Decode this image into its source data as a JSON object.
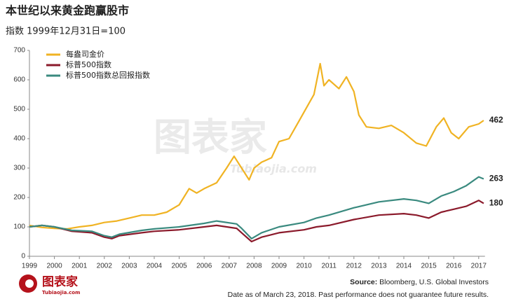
{
  "chart_data": {
    "type": "line",
    "title": "本世纪以来黄金跑赢股市",
    "subtitle": "指数 1999年12月31日=100",
    "source_label": "Source:",
    "source": "Bloomberg, U.S. Global Investors",
    "note": "Date as of March 23, 2018. Past performance does not guarantee future results.",
    "watermark": "图表家",
    "watermark_url": "Tubiaojia.com",
    "xlim": [
      1999,
      2017.25
    ],
    "xticks": [
      1999,
      2000,
      2001,
      2002,
      2003,
      2004,
      2005,
      2006,
      2007,
      2008,
      2009,
      2010,
      2011,
      2012,
      2013,
      2014,
      2015,
      2016,
      2017
    ],
    "ylim": [
      0,
      700
    ],
    "yticks": [
      0,
      100,
      200,
      300,
      400,
      500,
      600,
      700
    ],
    "legend": "upper left",
    "series": [
      {
        "name": "每盎司金价",
        "color": "#f0b323",
        "x": [
          1999.0,
          1999.5,
          2000.0,
          2000.5,
          2001.0,
          2001.5,
          2002.0,
          2002.5,
          2003.0,
          2003.5,
          2004.0,
          2004.5,
          2005.0,
          2005.4,
          2005.7,
          2006.0,
          2006.5,
          2006.9,
          2007.2,
          2007.5,
          2007.8,
          2008.0,
          2008.3,
          2008.7,
          2009.0,
          2009.4,
          2009.8,
          2010.2,
          2010.4,
          2010.65,
          2010.8,
          2011.0,
          2011.4,
          2011.7,
          2012.0,
          2012.2,
          2012.5,
          2013.0,
          2013.5,
          2014.0,
          2014.5,
          2014.9,
          2015.3,
          2015.6,
          2015.9,
          2016.2,
          2016.6,
          2017.0,
          2017.2
        ],
        "values": [
          105,
          98,
          95,
          93,
          100,
          105,
          115,
          120,
          130,
          140,
          140,
          150,
          175,
          230,
          215,
          230,
          250,
          300,
          340,
          300,
          260,
          300,
          320,
          335,
          390,
          400,
          460,
          520,
          550,
          655,
          580,
          600,
          570,
          610,
          560,
          480,
          440,
          435,
          445,
          420,
          385,
          375,
          440,
          470,
          420,
          400,
          440,
          450,
          462
        ]
      },
      {
        "name": "标普500指数",
        "color": "#8b1a2b",
        "x": [
          1999.0,
          1999.5,
          2000.0,
          2000.7,
          2001.5,
          2002.0,
          2002.3,
          2002.6,
          2003.5,
          2004.0,
          2005.0,
          2006.0,
          2006.5,
          2007.3,
          2007.5,
          2007.9,
          2008.3,
          2009.0,
          2010.0,
          2010.5,
          2011.0,
          2012.0,
          2013.0,
          2014.0,
          2014.5,
          2015.0,
          2015.5,
          2016.0,
          2016.5,
          2017.0,
          2017.2
        ],
        "values": [
          100,
          105,
          100,
          85,
          80,
          65,
          60,
          70,
          80,
          85,
          90,
          100,
          105,
          95,
          80,
          50,
          65,
          80,
          90,
          100,
          105,
          125,
          140,
          145,
          140,
          130,
          150,
          160,
          170,
          190,
          180
        ]
      },
      {
        "name": "标普500指数总回报指数",
        "color": "#3a8a7f",
        "x": [
          1999.0,
          1999.5,
          2000.0,
          2000.7,
          2001.5,
          2002.0,
          2002.3,
          2002.6,
          2003.5,
          2004.0,
          2005.0,
          2006.0,
          2006.5,
          2007.3,
          2007.5,
          2007.9,
          2008.3,
          2009.0,
          2010.0,
          2010.5,
          2011.0,
          2012.0,
          2013.0,
          2014.0,
          2014.5,
          2015.0,
          2015.5,
          2016.0,
          2016.5,
          2017.0,
          2017.2
        ],
        "values": [
          100,
          105,
          100,
          88,
          85,
          70,
          65,
          75,
          88,
          93,
          100,
          112,
          120,
          110,
          95,
          60,
          80,
          100,
          115,
          130,
          140,
          165,
          185,
          195,
          190,
          180,
          205,
          220,
          240,
          270,
          263
        ]
      }
    ]
  }
}
